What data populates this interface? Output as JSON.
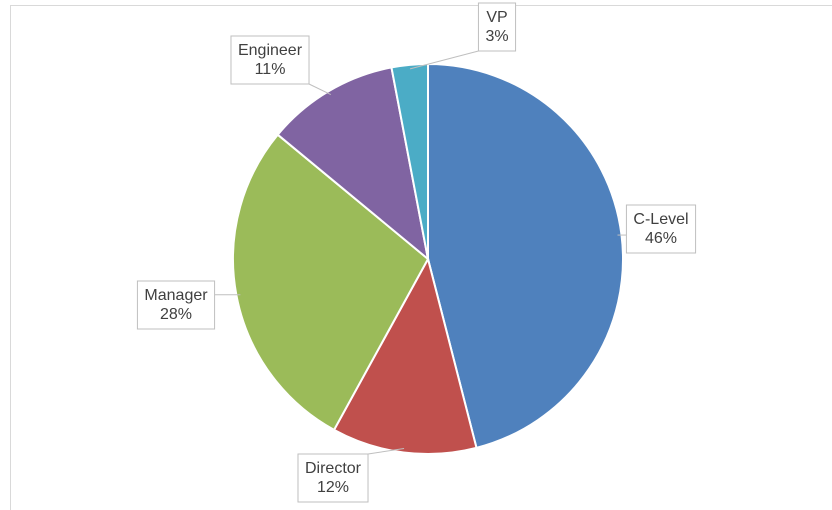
{
  "chart_data": {
    "type": "pie",
    "categories": [
      "C-Level",
      "Director",
      "Manager",
      "Engineer",
      "VP"
    ],
    "values": [
      46,
      12,
      28,
      11,
      3
    ],
    "value_labels": [
      "46%",
      "12%",
      "28%",
      "11%",
      "3%"
    ],
    "colors": [
      "#4f81bd",
      "#c0504d",
      "#9bbb59",
      "#8064a2",
      "#4bacc6"
    ]
  }
}
